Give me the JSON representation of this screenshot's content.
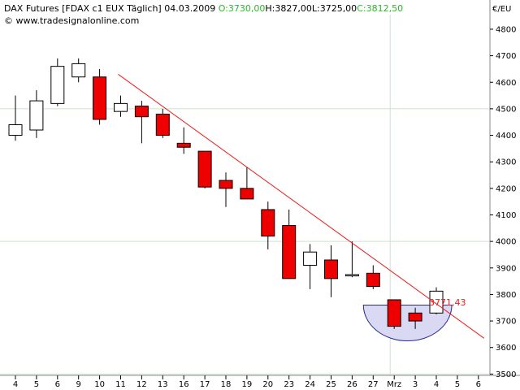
{
  "header": {
    "instrument": "DAX Futures",
    "symbol": "[FDAX c1 EUX  Täglich]",
    "date": "04.03.2009",
    "open": "O:3730,00",
    "high": "H:3827,00",
    "low": "L:3725,00",
    "close": "C:3812,50",
    "source": "© www.tradesignalonline.com",
    "currency": "€/EU"
  },
  "colors": {
    "bull_fill": "#ffffff",
    "bear_fill": "#ee0000",
    "trendline": "#ee1c1c",
    "open_text": "#2cb52c",
    "close_text": "#2cb52c",
    "grid": "#cfe0cf",
    "ellipse_fill": "#d9d9f4",
    "ellipse_stroke": "#2a2a8a"
  },
  "chart_data": {
    "type": "candlestick",
    "y_label": "€/EU",
    "ylim": [
      3495,
      4855
    ],
    "y_ticks": [
      3500,
      3600,
      3700,
      3800,
      3900,
      4000,
      4100,
      4200,
      4300,
      4400,
      4500,
      4600,
      4700,
      4800
    ],
    "x_tick_labels": [
      "4",
      "5",
      "6",
      "9",
      "10",
      "11",
      "12",
      "13",
      "16",
      "17",
      "18",
      "19",
      "20",
      "23",
      "24",
      "25",
      "26",
      "27",
      "Mrz",
      "3",
      "4",
      "5",
      "6"
    ],
    "grid": "horizontal lines at 3500, 4000, 4500; vertical line at Mrz",
    "candles": [
      {
        "x": "4",
        "o": 4400,
        "h": 4550,
        "l": 4380,
        "c": 4440
      },
      {
        "x": "5",
        "o": 4420,
        "h": 4570,
        "l": 4390,
        "c": 4530
      },
      {
        "x": "6",
        "o": 4520,
        "h": 4690,
        "l": 4510,
        "c": 4660
      },
      {
        "x": "9",
        "o": 4620,
        "h": 4690,
        "l": 4600,
        "c": 4670
      },
      {
        "x": "10",
        "o": 4620,
        "h": 4650,
        "l": 4440,
        "c": 4460
      },
      {
        "x": "11",
        "o": 4490,
        "h": 4550,
        "l": 4470,
        "c": 4520
      },
      {
        "x": "12",
        "o": 4510,
        "h": 4530,
        "l": 4370,
        "c": 4470
      },
      {
        "x": "13",
        "o": 4480,
        "h": 4500,
        "l": 4390,
        "c": 4400
      },
      {
        "x": "16",
        "o": 4370,
        "h": 4430,
        "l": 4330,
        "c": 4355
      },
      {
        "x": "17",
        "o": 4340,
        "h": 4340,
        "l": 4200,
        "c": 4205
      },
      {
        "x": "18",
        "o": 4230,
        "h": 4260,
        "l": 4130,
        "c": 4200
      },
      {
        "x": "19",
        "o": 4200,
        "h": 4280,
        "l": 4160,
        "c": 4160
      },
      {
        "x": "20",
        "o": 4120,
        "h": 4150,
        "l": 3970,
        "c": 4020
      },
      {
        "x": "23",
        "o": 4060,
        "h": 4120,
        "l": 3860,
        "c": 3860
      },
      {
        "x": "24",
        "o": 3910,
        "h": 3990,
        "l": 3820,
        "c": 3960
      },
      {
        "x": "25",
        "o": 3930,
        "h": 3985,
        "l": 3790,
        "c": 3860
      },
      {
        "x": "26",
        "o": 3870,
        "h": 4000,
        "l": 3865,
        "c": 3875
      },
      {
        "x": "27",
        "o": 3880,
        "h": 3910,
        "l": 3820,
        "c": 3830
      },
      {
        "x": "Mrz",
        "o": 3780,
        "h": 3780,
        "l": 3670,
        "c": 3680
      },
      {
        "x": "3",
        "o": 3730,
        "h": 3750,
        "l": 3670,
        "c": 3700
      },
      {
        "x": "4",
        "o": 3730,
        "h": 3827,
        "l": 3725,
        "c": 3812.5
      }
    ],
    "trendline": {
      "from": {
        "x": "11",
        "y": 4630
      },
      "to": {
        "x": "6",
        "y": 3635
      }
    },
    "annotations": [
      {
        "text": "3771,43",
        "x": "4",
        "y": 3771.43
      }
    ],
    "highlight": {
      "shape": "half-ellipse",
      "x_from": "27",
      "x_to": "4",
      "y_top": 3760,
      "y_bottom": 3625
    }
  }
}
